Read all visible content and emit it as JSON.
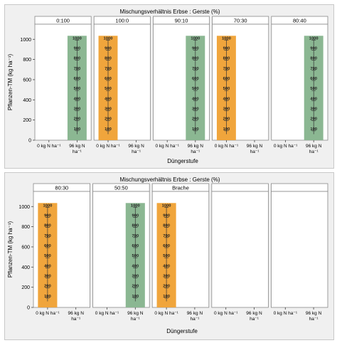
{
  "colors": {
    "green": "#8bb792",
    "orange": "#f0a53c",
    "panel_bg": "#f0f0f0",
    "grid": "#808080"
  },
  "chart_data": [
    {
      "type": "bar",
      "title": "Mischungsverhältnis Erbse : Gerste (%)",
      "xlabel": "Düngerstufe",
      "ylabel": "Pflanzen-TM (kg ha⁻¹)",
      "ylim": [
        0,
        1150
      ],
      "yticks": [
        "0",
        "200",
        "400",
        "600",
        "800",
        "1000"
      ],
      "x_categories": [
        "0 kg N ha⁻¹",
        "96 kg N ha⁻¹"
      ],
      "x_category_lines": [
        [
          "0 kg N ha⁻¹"
        ],
        [
          "96 kg N",
          "ha⁻¹"
        ]
      ],
      "bar_labels": [
        "100",
        "200",
        "300",
        "400",
        "500",
        "600",
        "700",
        "800",
        "900",
        "1000"
      ],
      "facets": [
        {
          "label": "0:100",
          "bars": [
            {
              "category": "96 kg N ha⁻¹",
              "value": 1000,
              "color": "green"
            }
          ]
        },
        {
          "label": "100:0",
          "bars": [
            {
              "category": "0 kg N ha⁻¹",
              "value": 1000,
              "color": "orange"
            }
          ]
        },
        {
          "label": "90:10",
          "bars": [
            {
              "category": "96 kg N ha⁻¹",
              "value": 1000,
              "color": "green"
            }
          ]
        },
        {
          "label": "70:30",
          "bars": [
            {
              "category": "0 kg N ha⁻¹",
              "value": 1000,
              "color": "orange"
            }
          ]
        },
        {
          "label": "80:40",
          "bars": [
            {
              "category": "96 kg N ha⁻¹",
              "value": 1000,
              "color": "green"
            }
          ]
        }
      ],
      "grid": false
    },
    {
      "type": "bar",
      "title": "Mischungsverhältnis Erbse : Gerste (%)",
      "xlabel": "Düngerstufe",
      "ylabel": "Pflanzen-TM (kg ha⁻¹)",
      "ylim": [
        0,
        1150
      ],
      "yticks": [
        "0",
        "200",
        "400",
        "600",
        "800",
        "1000"
      ],
      "x_categories": [
        "0 kg N ha⁻¹",
        "96 kg N ha⁻¹"
      ],
      "x_category_lines": [
        [
          "0 kg N ha⁻¹"
        ],
        [
          "96 kg N",
          "ha⁻¹"
        ]
      ],
      "bar_labels": [
        "100",
        "200",
        "300",
        "400",
        "500",
        "600",
        "700",
        "800",
        "900",
        "1000"
      ],
      "facets": [
        {
          "label": "80:30",
          "bars": [
            {
              "category": "0 kg N ha⁻¹",
              "value": 1000,
              "color": "orange"
            }
          ]
        },
        {
          "label": "50:50",
          "bars": [
            {
              "category": "96 kg N ha⁻¹",
              "value": 1000,
              "color": "green"
            }
          ]
        },
        {
          "label": "Brache",
          "bars": [
            {
              "category": "0 kg N ha⁻¹",
              "value": 1000,
              "color": "orange"
            }
          ]
        },
        {
          "label": "",
          "bars": []
        },
        {
          "label": "",
          "bars": []
        }
      ],
      "grid": false
    }
  ]
}
